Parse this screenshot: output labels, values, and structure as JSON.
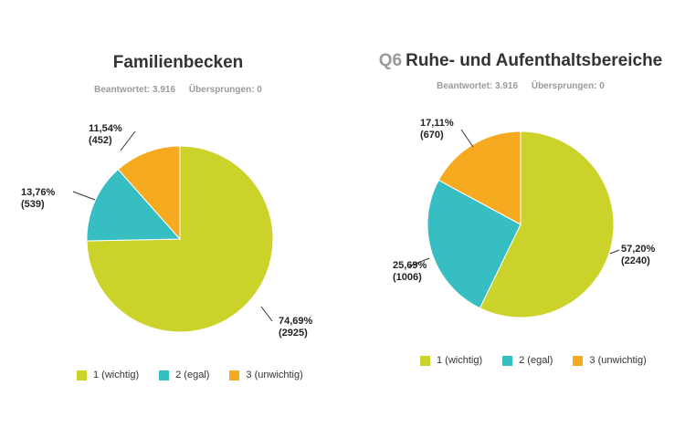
{
  "legend": {
    "items": [
      {
        "label": "1 (wichtig)",
        "color": "#cbd32a"
      },
      {
        "label": "2 (egal)",
        "color": "#36bec3"
      },
      {
        "label": "3 (unwichtig)",
        "color": "#f6aa1f"
      }
    ]
  },
  "chart_data": [
    {
      "type": "pie",
      "title": "Familienbecken",
      "answered": "Beantwortet: 3.916",
      "skipped": "Übersprungen: 0",
      "categories": [
        "1 (wichtig)",
        "2 (egal)",
        "3 (unwichtig)"
      ],
      "colors": [
        "#cbd32a",
        "#36bec3",
        "#f6aa1f"
      ],
      "values": [
        2925,
        539,
        452
      ],
      "percents": [
        "74,69%",
        "13,76%",
        "11,54%"
      ],
      "value_labels": [
        "(2925)",
        "(539)",
        "(452)"
      ]
    },
    {
      "type": "pie",
      "question": "Q6",
      "title": "Ruhe- und Aufenthaltsbereiche",
      "answered": "Beantwortet: 3.916",
      "skipped": "Übersprungen: 0",
      "categories": [
        "1 (wichtig)",
        "2 (egal)",
        "3 (unwichtig)"
      ],
      "colors": [
        "#cbd32a",
        "#36bec3",
        "#f6aa1f"
      ],
      "values": [
        2240,
        1006,
        670
      ],
      "percents": [
        "57,20%",
        "25,69%",
        "17,11%"
      ],
      "value_labels": [
        "(2240)",
        "(1006)",
        "(670)"
      ]
    }
  ]
}
